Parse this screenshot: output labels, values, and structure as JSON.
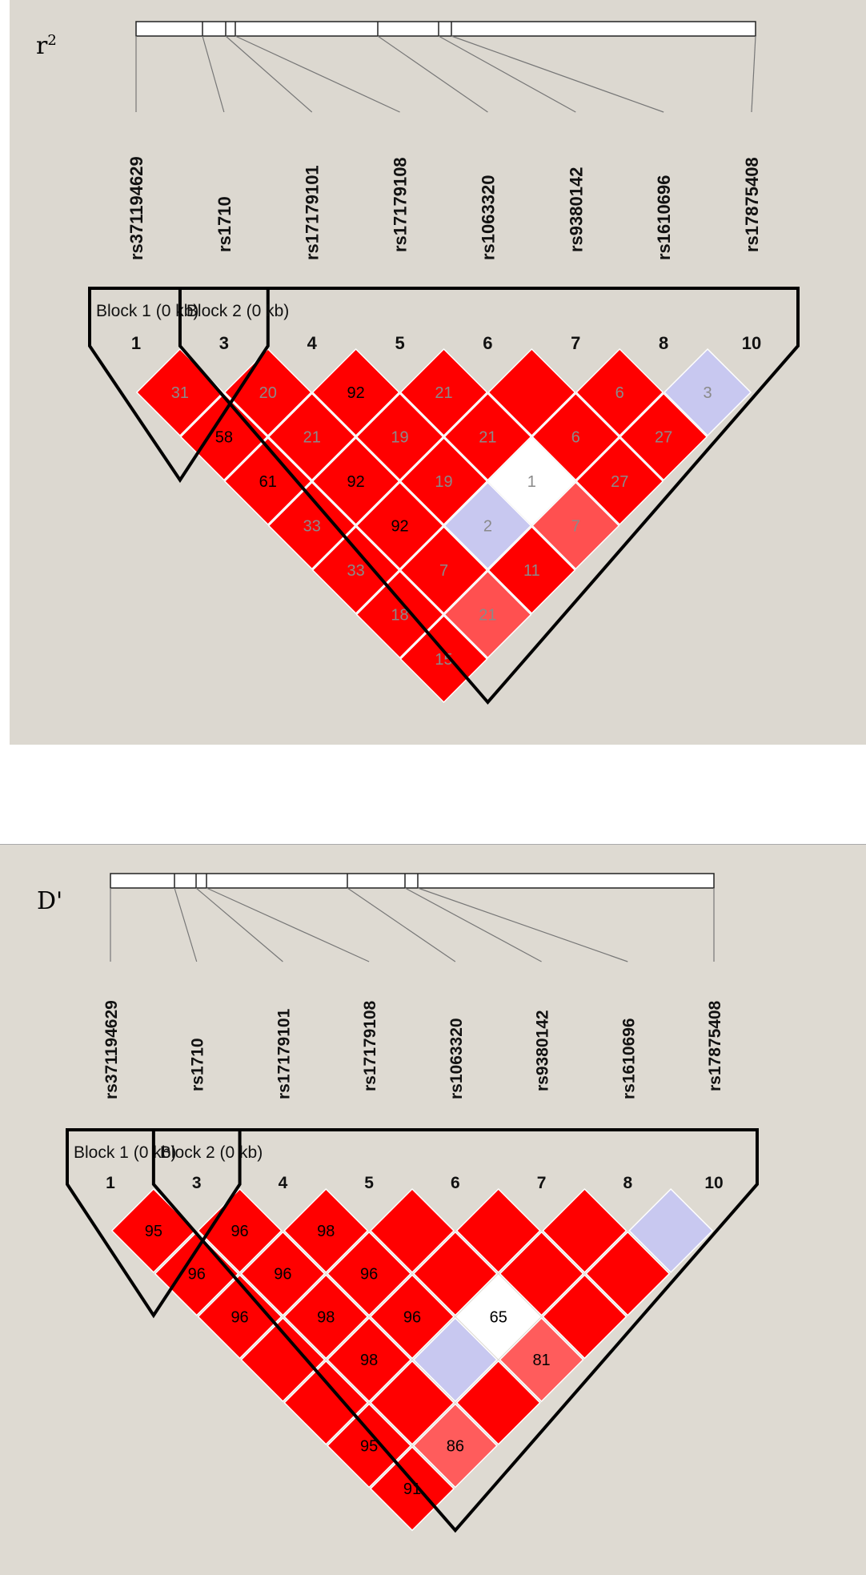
{
  "panels": [
    {
      "id": "r2",
      "label_main": "r",
      "label_sup": "2",
      "snps": [
        "rs371194629",
        "rs1710",
        "rs17179101",
        "rs17179108",
        "rs1063320",
        "rs9380142",
        "rs1610696",
        "rs17875408"
      ],
      "marker_numbers": [
        "1",
        "3",
        "4",
        "5",
        "6",
        "7",
        "8",
        "10"
      ],
      "blocks": [
        {
          "name": "Block 1 (0 kb)",
          "start": 0,
          "end": 1
        },
        {
          "name": "Block 2 (0 kb)",
          "start": 1,
          "end": 7
        }
      ],
      "cells": [
        {
          "i": 0,
          "j": 1,
          "color": "#ff0000",
          "text": "31",
          "tc": "#8a8a8a"
        },
        {
          "i": 1,
          "j": 2,
          "color": "#ff0000",
          "text": "20",
          "tc": "#8a8a8a"
        },
        {
          "i": 2,
          "j": 3,
          "color": "#ff0000",
          "text": "92",
          "tc": "#000000"
        },
        {
          "i": 3,
          "j": 4,
          "color": "#ff0000",
          "text": "21",
          "tc": "#8a8a8a"
        },
        {
          "i": 4,
          "j": 5,
          "color": "#ff0000",
          "text": "",
          "tc": "#8a8a8a"
        },
        {
          "i": 5,
          "j": 6,
          "color": "#ff0000",
          "text": "6",
          "tc": "#8a8a8a"
        },
        {
          "i": 6,
          "j": 7,
          "color": "#c8c8f0",
          "text": "3",
          "tc": "#8a8a8a"
        },
        {
          "i": 0,
          "j": 2,
          "color": "#ff0000",
          "text": "58",
          "tc": "#000000"
        },
        {
          "i": 1,
          "j": 3,
          "color": "#ff0000",
          "text": "21",
          "tc": "#8a8a8a"
        },
        {
          "i": 2,
          "j": 4,
          "color": "#ff0000",
          "text": "19",
          "tc": "#8a8a8a"
        },
        {
          "i": 3,
          "j": 5,
          "color": "#ff0000",
          "text": "21",
          "tc": "#8a8a8a"
        },
        {
          "i": 4,
          "j": 6,
          "color": "#ff0000",
          "text": "6",
          "tc": "#8a8a8a"
        },
        {
          "i": 5,
          "j": 7,
          "color": "#ff0000",
          "text": "27",
          "tc": "#8a8a8a"
        },
        {
          "i": 0,
          "j": 3,
          "color": "#ff0000",
          "text": "61",
          "tc": "#000000"
        },
        {
          "i": 1,
          "j": 4,
          "color": "#ff0000",
          "text": "92",
          "tc": "#000000"
        },
        {
          "i": 2,
          "j": 5,
          "color": "#ff0000",
          "text": "19",
          "tc": "#8a8a8a"
        },
        {
          "i": 3,
          "j": 6,
          "color": "#ffffff",
          "text": "1",
          "tc": "#8a8a8a"
        },
        {
          "i": 4,
          "j": 7,
          "color": "#ff0000",
          "text": "27",
          "tc": "#8a8a8a"
        },
        {
          "i": 0,
          "j": 4,
          "color": "#ff0000",
          "text": "33",
          "tc": "#8a8a8a"
        },
        {
          "i": 1,
          "j": 5,
          "color": "#ff0000",
          "text": "92",
          "tc": "#000000"
        },
        {
          "i": 2,
          "j": 6,
          "color": "#c8c8f0",
          "text": "2",
          "tc": "#8a8a8a"
        },
        {
          "i": 3,
          "j": 7,
          "color": "#ff5050",
          "text": "7",
          "tc": "#8a8a8a"
        },
        {
          "i": 0,
          "j": 5,
          "color": "#ff0000",
          "text": "33",
          "tc": "#8a8a8a"
        },
        {
          "i": 1,
          "j": 6,
          "color": "#ff0000",
          "text": "7",
          "tc": "#8a8a8a"
        },
        {
          "i": 2,
          "j": 7,
          "color": "#ff0000",
          "text": "11",
          "tc": "#8a8a8a"
        },
        {
          "i": 0,
          "j": 6,
          "color": "#ff0000",
          "text": "18",
          "tc": "#8a8a8a"
        },
        {
          "i": 1,
          "j": 7,
          "color": "#ff5050",
          "text": "21",
          "tc": "#8a8a8a"
        },
        {
          "i": 0,
          "j": 7,
          "color": "#ff0000",
          "text": "15",
          "tc": "#8a8a8a"
        }
      ]
    },
    {
      "id": "dprime",
      "label_main": "D'",
      "label_sup": "",
      "snps": [
        "rs371194629",
        "rs1710",
        "rs17179101",
        "rs17179108",
        "rs1063320",
        "rs9380142",
        "rs1610696",
        "rs17875408"
      ],
      "marker_numbers": [
        "1",
        "3",
        "4",
        "5",
        "6",
        "7",
        "8",
        "10"
      ],
      "blocks": [
        {
          "name": "Block 1 (0 kb)",
          "start": 0,
          "end": 1
        },
        {
          "name": "Block 2 (0 kb)",
          "start": 1,
          "end": 7
        }
      ],
      "cells": [
        {
          "i": 0,
          "j": 1,
          "color": "#ff0000",
          "text": "95",
          "tc": "#000000"
        },
        {
          "i": 1,
          "j": 2,
          "color": "#ff0000",
          "text": "96",
          "tc": "#000000"
        },
        {
          "i": 2,
          "j": 3,
          "color": "#ff0000",
          "text": "98",
          "tc": "#000000"
        },
        {
          "i": 3,
          "j": 4,
          "color": "#ff0000",
          "text": "",
          "tc": "#000000"
        },
        {
          "i": 4,
          "j": 5,
          "color": "#ff0000",
          "text": "",
          "tc": "#000000"
        },
        {
          "i": 5,
          "j": 6,
          "color": "#ff0000",
          "text": "",
          "tc": "#000000"
        },
        {
          "i": 6,
          "j": 7,
          "color": "#c8c8f0",
          "text": "",
          "tc": "#000000"
        },
        {
          "i": 0,
          "j": 2,
          "color": "#ff0000",
          "text": "96",
          "tc": "#000000"
        },
        {
          "i": 1,
          "j": 3,
          "color": "#ff0000",
          "text": "96",
          "tc": "#000000"
        },
        {
          "i": 2,
          "j": 4,
          "color": "#ff0000",
          "text": "96",
          "tc": "#000000"
        },
        {
          "i": 3,
          "j": 5,
          "color": "#ff0000",
          "text": "",
          "tc": "#000000"
        },
        {
          "i": 4,
          "j": 6,
          "color": "#ff0000",
          "text": "",
          "tc": "#000000"
        },
        {
          "i": 5,
          "j": 7,
          "color": "#ff0000",
          "text": "",
          "tc": "#000000"
        },
        {
          "i": 0,
          "j": 3,
          "color": "#ff0000",
          "text": "96",
          "tc": "#000000"
        },
        {
          "i": 1,
          "j": 4,
          "color": "#ff0000",
          "text": "98",
          "tc": "#000000"
        },
        {
          "i": 2,
          "j": 5,
          "color": "#ff0000",
          "text": "96",
          "tc": "#000000"
        },
        {
          "i": 3,
          "j": 6,
          "color": "#ffffff",
          "text": "65",
          "tc": "#000000"
        },
        {
          "i": 4,
          "j": 7,
          "color": "#ff0000",
          "text": "",
          "tc": "#000000"
        },
        {
          "i": 0,
          "j": 4,
          "color": "#ff0000",
          "text": "",
          "tc": "#000000"
        },
        {
          "i": 1,
          "j": 5,
          "color": "#ff0000",
          "text": "98",
          "tc": "#000000"
        },
        {
          "i": 2,
          "j": 6,
          "color": "#c8c8f0",
          "text": "",
          "tc": "#000000"
        },
        {
          "i": 3,
          "j": 7,
          "color": "#ff5c5c",
          "text": "81",
          "tc": "#000000"
        },
        {
          "i": 0,
          "j": 5,
          "color": "#ff0000",
          "text": "",
          "tc": "#000000"
        },
        {
          "i": 1,
          "j": 6,
          "color": "#ff0000",
          "text": "",
          "tc": "#000000"
        },
        {
          "i": 2,
          "j": 7,
          "color": "#ff0000",
          "text": "",
          "tc": "#000000"
        },
        {
          "i": 0,
          "j": 6,
          "color": "#ff0000",
          "text": "95",
          "tc": "#000000"
        },
        {
          "i": 1,
          "j": 7,
          "color": "#ff5c5c",
          "text": "86",
          "tc": "#000000"
        },
        {
          "i": 0,
          "j": 7,
          "color": "#ff0000",
          "text": "91",
          "tc": "#000000"
        }
      ]
    }
  ]
}
